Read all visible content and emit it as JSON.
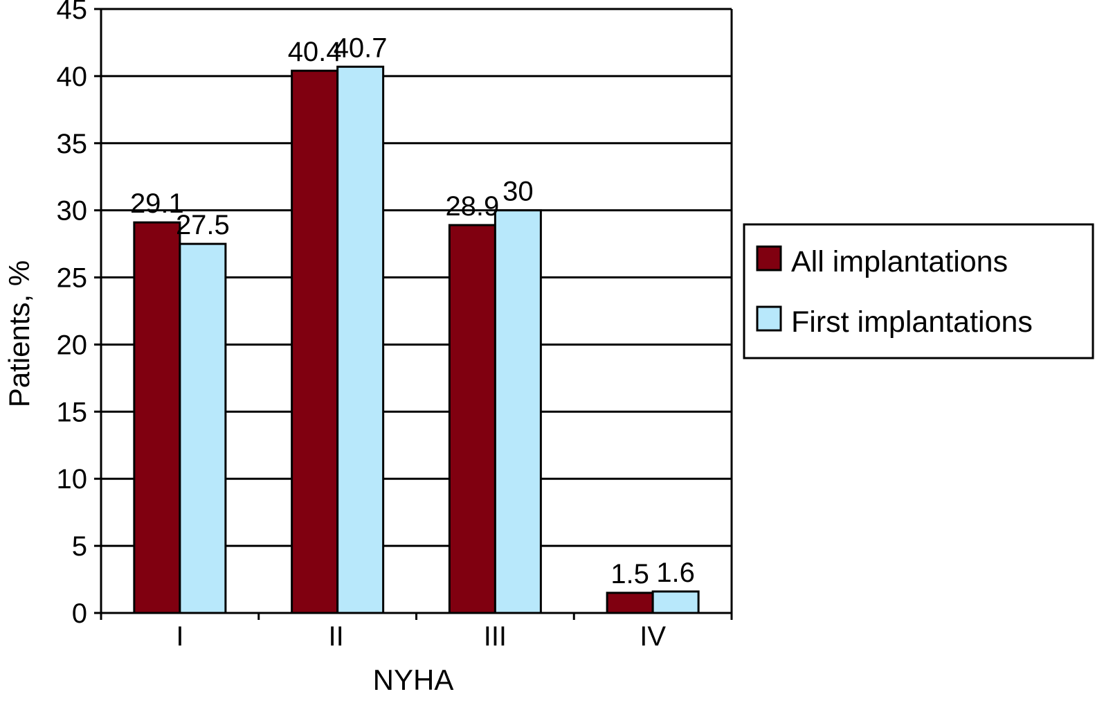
{
  "chart_data": {
    "type": "bar",
    "categories": [
      "I",
      "II",
      "III",
      "IV"
    ],
    "series": [
      {
        "name": "All implantations",
        "values": [
          29.1,
          40.4,
          28.9,
          1.5
        ],
        "labels": [
          "29.1",
          "40.4",
          "28.9",
          "1.5"
        ],
        "color": "#800010"
      },
      {
        "name": "First implantations",
        "values": [
          27.5,
          40.7,
          30,
          1.6
        ],
        "labels": [
          "27.5",
          "40.7",
          "30",
          "1.6"
        ],
        "color": "#b8e8fb"
      }
    ],
    "xlabel": "NYHA",
    "ylabel": "Patients, %",
    "ylim": [
      0,
      45
    ],
    "yticks": [
      0,
      5,
      10,
      15,
      20,
      25,
      30,
      35,
      40,
      45
    ],
    "grid": true,
    "legend_position": "right"
  }
}
